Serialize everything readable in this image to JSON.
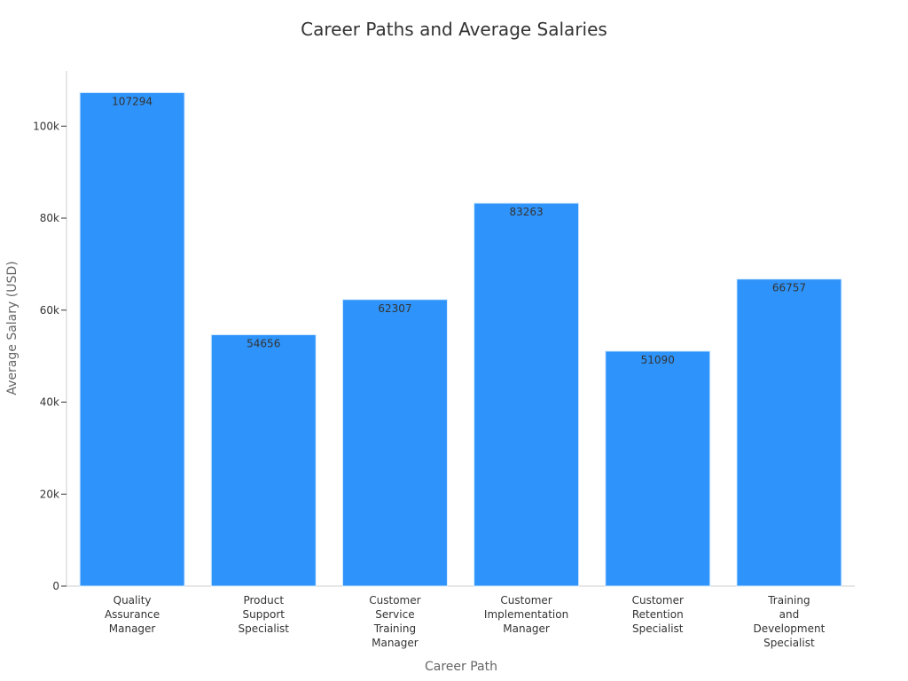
{
  "chart_data": {
    "type": "bar",
    "title": "Career Paths and Average Salaries",
    "xlabel": "Career Path",
    "ylabel": "Average Salary (USD)",
    "categories": [
      "Quality Assurance Manager",
      "Product Support Specialist",
      "Customer Service Training Manager",
      "Customer Implementation Manager",
      "Customer Retention Specialist",
      "Training and Development Specialist"
    ],
    "category_label_lines": [
      [
        "Quality",
        "Assurance",
        "Manager"
      ],
      [
        "Product",
        "Support",
        "Specialist"
      ],
      [
        "Customer",
        "Service",
        "Training",
        "Manager"
      ],
      [
        "Customer",
        "Implementation",
        "Manager"
      ],
      [
        "Customer",
        "Retention",
        "Specialist"
      ],
      [
        "Training",
        "and",
        "Development",
        "Specialist"
      ]
    ],
    "values": [
      107294,
      54656,
      62307,
      83263,
      51090,
      66757
    ],
    "data_labels": [
      "107294",
      "54656",
      "62307",
      "83263",
      "51090",
      "66757"
    ],
    "ylim": [
      0,
      112000
    ],
    "y_ticks": [
      0,
      20000,
      40000,
      60000,
      80000,
      100000
    ],
    "y_tick_labels": [
      "0",
      "20k",
      "40k",
      "60k",
      "80k",
      "100k"
    ],
    "grid": false,
    "bar_color": "#2e93fa",
    "bar_edge_color": "#d8ecff",
    "axis_color": "#cccccc"
  }
}
